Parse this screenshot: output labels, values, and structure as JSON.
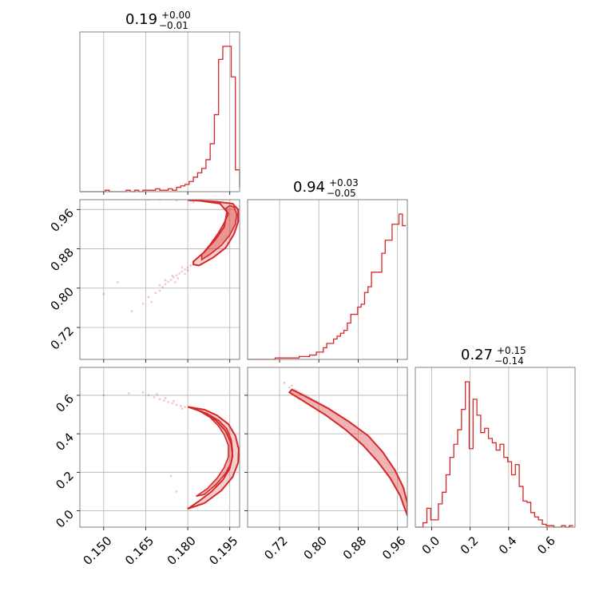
{
  "colors": {
    "series": "#d62728",
    "grid": "#b0b0b0",
    "frame": "#808080"
  },
  "titles": {
    "p1": {
      "median": "0.19",
      "plus": "+0.00",
      "minus": "−0.01"
    },
    "p2": {
      "median": "0.94",
      "plus": "+0.03",
      "minus": "−0.05"
    },
    "p3": {
      "median": "0.27",
      "plus": "+0.15",
      "minus": "−0.14"
    }
  },
  "chart_data": {
    "type": "corner",
    "grid": true,
    "parameters": [
      {
        "median": 0.19,
        "err_plus": 0.0,
        "err_minus": 0.01,
        "range": [
          0.1415,
          0.1985
        ],
        "ticks": [
          "0.150",
          "0.165",
          "0.180",
          "0.195"
        ],
        "tick_values": [
          0.15,
          0.165,
          0.18,
          0.195
        ]
      },
      {
        "median": 0.94,
        "err_plus": 0.03,
        "err_minus": 0.05,
        "range": [
          0.655,
          0.98
        ],
        "ticks": [
          "0.72",
          "0.80",
          "0.88",
          "0.96"
        ],
        "tick_values": [
          0.72,
          0.8,
          0.88,
          0.96
        ]
      },
      {
        "median": 0.27,
        "err_plus": 0.15,
        "err_minus": 0.14,
        "range": [
          -0.085,
          0.745
        ],
        "ticks": [
          "0.0",
          "0.2",
          "0.4",
          "0.6"
        ],
        "tick_values": [
          0.0,
          0.2,
          0.4,
          0.6
        ]
      }
    ],
    "histograms": [
      {
        "param": 0,
        "edges": [
          0.1415,
          0.143,
          0.1445,
          0.146,
          0.1475,
          0.149,
          0.1505,
          0.152,
          0.1535,
          0.155,
          0.1565,
          0.158,
          0.1595,
          0.161,
          0.1625,
          0.164,
          0.1655,
          0.167,
          0.1685,
          0.17,
          0.1715,
          0.173,
          0.1745,
          0.176,
          0.1775,
          0.179,
          0.1805,
          0.182,
          0.1835,
          0.185,
          0.1865,
          0.188,
          0.1895,
          0.191,
          0.1925,
          0.194,
          0.1955,
          0.197,
          0.1985
        ],
        "counts": [
          0,
          0,
          0,
          0,
          0,
          0,
          1,
          0,
          0,
          0,
          0,
          1,
          0,
          1,
          0,
          1,
          1,
          1,
          2,
          1,
          1,
          2,
          1,
          3,
          4,
          5,
          7,
          10,
          13,
          16,
          22,
          33,
          53,
          91,
          100,
          100,
          79,
          15,
          3
        ]
      },
      {
        "param": 1,
        "edges": [
          0.655,
          0.662,
          0.669,
          0.676,
          0.683,
          0.69,
          0.697,
          0.704,
          0.711,
          0.718,
          0.725,
          0.732,
          0.739,
          0.746,
          0.753,
          0.76,
          0.767,
          0.774,
          0.781,
          0.788,
          0.795,
          0.802,
          0.809,
          0.816,
          0.823,
          0.83,
          0.837,
          0.844,
          0.851,
          0.858,
          0.865,
          0.872,
          0.879,
          0.886,
          0.893,
          0.9,
          0.907,
          0.914,
          0.921,
          0.928,
          0.935,
          0.942,
          0.949,
          0.956,
          0.963,
          0.97,
          0.977
        ],
        "counts": [
          0,
          0,
          0,
          0,
          0,
          0,
          0,
          0,
          1,
          1,
          1,
          1,
          1,
          1,
          1,
          2,
          2,
          2,
          3,
          3,
          5,
          5,
          8,
          11,
          11,
          14,
          16,
          18,
          20,
          25,
          31,
          31,
          36,
          38,
          46,
          50,
          60,
          60,
          60,
          73,
          82,
          82,
          93,
          93,
          100,
          92
        ]
      },
      {
        "param": 2,
        "edges": [
          -0.085,
          -0.065,
          -0.045,
          -0.025,
          -0.005,
          0.015,
          0.035,
          0.055,
          0.075,
          0.095,
          0.115,
          0.135,
          0.155,
          0.175,
          0.195,
          0.215,
          0.235,
          0.255,
          0.275,
          0.295,
          0.315,
          0.335,
          0.355,
          0.375,
          0.395,
          0.415,
          0.435,
          0.455,
          0.475,
          0.495,
          0.515,
          0.535,
          0.555,
          0.575,
          0.595,
          0.615,
          0.635,
          0.655,
          0.675,
          0.695,
          0.715,
          0.735
        ],
        "counts": [
          0,
          0,
          3,
          13,
          5,
          5,
          16,
          24,
          36,
          48,
          57,
          67,
          81,
          100,
          54,
          88,
          77,
          65,
          68,
          61,
          58,
          53,
          57,
          48,
          45,
          36,
          43,
          28,
          18,
          17,
          10,
          7,
          5,
          2,
          1,
          1,
          0,
          0,
          1,
          0,
          1
        ]
      }
    ],
    "pairs": [
      {
        "x": 0,
        "y": 1,
        "contour_inner": [
          [
            0.185,
            0.868
          ],
          [
            0.188,
            0.889
          ],
          [
            0.191,
            0.913
          ],
          [
            0.193,
            0.933
          ],
          [
            0.1945,
            0.951
          ],
          [
            0.1935,
            0.962
          ],
          [
            0.195,
            0.968
          ],
          [
            0.1965,
            0.965
          ],
          [
            0.1975,
            0.95
          ],
          [
            0.197,
            0.93
          ],
          [
            0.195,
            0.908
          ],
          [
            0.192,
            0.887
          ],
          [
            0.188,
            0.869
          ],
          [
            0.185,
            0.858
          ]
        ],
        "contour_outer": [
          [
            0.182,
            0.854
          ],
          [
            0.186,
            0.874
          ],
          [
            0.19,
            0.9
          ],
          [
            0.193,
            0.925
          ],
          [
            0.194,
            0.955
          ],
          [
            0.1915,
            0.972
          ],
          [
            0.184,
            0.978
          ],
          [
            0.18,
            0.979
          ],
          [
            0.19,
            0.976
          ],
          [
            0.196,
            0.972
          ],
          [
            0.198,
            0.96
          ],
          [
            0.198,
            0.935
          ],
          [
            0.1965,
            0.91
          ],
          [
            0.1935,
            0.882
          ],
          [
            0.189,
            0.862
          ],
          [
            0.184,
            0.846
          ],
          [
            0.182,
            0.848
          ]
        ],
        "scatter": [
          [
            0.155,
            0.812
          ],
          [
            0.16,
            0.753
          ],
          [
            0.164,
            0.768
          ],
          [
            0.166,
            0.782
          ],
          [
            0.167,
            0.772
          ],
          [
            0.1685,
            0.79
          ],
          [
            0.17,
            0.795
          ],
          [
            0.171,
            0.802
          ],
          [
            0.172,
            0.808
          ],
          [
            0.173,
            0.813
          ],
          [
            0.174,
            0.817
          ],
          [
            0.175,
            0.822
          ],
          [
            0.176,
            0.826
          ],
          [
            0.177,
            0.83
          ],
          [
            0.178,
            0.834
          ],
          [
            0.179,
            0.838
          ],
          [
            0.18,
            0.842
          ],
          [
            0.181,
            0.846
          ],
          [
            0.172,
            0.816
          ],
          [
            0.1745,
            0.825
          ],
          [
            0.1765,
            0.82
          ],
          [
            0.179,
            0.829
          ],
          [
            0.178,
            0.842
          ],
          [
            0.1755,
            0.812
          ],
          [
            0.17,
            0.806
          ],
          [
            0.18,
            0.836
          ],
          [
            0.15,
            0.788
          ],
          [
            0.181,
            0.978
          ],
          [
            0.176,
            0.979
          ],
          [
            0.17,
            0.98
          ],
          [
            0.166,
            0.98
          ],
          [
            0.182,
            0.975
          ]
        ]
      },
      {
        "x": 0,
        "y": 2,
        "contour_inner": [
          [
            0.184,
            0.52
          ],
          [
            0.188,
            0.485
          ],
          [
            0.191,
            0.44
          ],
          [
            0.193,
            0.395
          ],
          [
            0.1945,
            0.34
          ],
          [
            0.1945,
            0.28
          ],
          [
            0.193,
            0.225
          ],
          [
            0.1905,
            0.17
          ],
          [
            0.187,
            0.115
          ],
          [
            0.183,
            0.075
          ],
          [
            0.186,
            0.085
          ],
          [
            0.19,
            0.135
          ],
          [
            0.1935,
            0.195
          ],
          [
            0.1955,
            0.25
          ],
          [
            0.196,
            0.31
          ],
          [
            0.1955,
            0.37
          ],
          [
            0.194,
            0.425
          ],
          [
            0.191,
            0.47
          ],
          [
            0.187,
            0.505
          ]
        ],
        "contour_outer": [
          [
            0.18,
            0.54
          ],
          [
            0.185,
            0.515
          ],
          [
            0.19,
            0.47
          ],
          [
            0.1935,
            0.415
          ],
          [
            0.1955,
            0.35
          ],
          [
            0.196,
            0.285
          ],
          [
            0.195,
            0.22
          ],
          [
            0.1925,
            0.16
          ],
          [
            0.1885,
            0.1
          ],
          [
            0.184,
            0.05
          ],
          [
            0.18,
            0.01
          ],
          [
            0.186,
            0.04
          ],
          [
            0.192,
            0.105
          ],
          [
            0.196,
            0.175
          ],
          [
            0.198,
            0.25
          ],
          [
            0.1982,
            0.32
          ],
          [
            0.197,
            0.39
          ],
          [
            0.1945,
            0.45
          ],
          [
            0.1905,
            0.495
          ],
          [
            0.186,
            0.525
          ]
        ],
        "scatter": [
          [
            0.159,
            0.61
          ],
          [
            0.164,
            0.615
          ],
          [
            0.166,
            0.6
          ],
          [
            0.168,
            0.59
          ],
          [
            0.17,
            0.58
          ],
          [
            0.1715,
            0.572
          ],
          [
            0.173,
            0.565
          ],
          [
            0.1745,
            0.558
          ],
          [
            0.176,
            0.55
          ],
          [
            0.1775,
            0.545
          ],
          [
            0.179,
            0.54
          ],
          [
            0.172,
            0.585
          ],
          [
            0.169,
            0.605
          ],
          [
            0.175,
            0.57
          ],
          [
            0.178,
            0.53
          ],
          [
            0.18,
            0.015
          ],
          [
            0.176,
            0.1
          ],
          [
            0.174,
            0.18
          ],
          [
            0.15,
            0.6
          ]
        ]
      },
      {
        "x": 1,
        "y": 2,
        "band_upper": [
          [
            0.745,
            0.63
          ],
          [
            0.78,
            0.585
          ],
          [
            0.82,
            0.53
          ],
          [
            0.86,
            0.465
          ],
          [
            0.9,
            0.39
          ],
          [
            0.93,
            0.305
          ],
          [
            0.955,
            0.21
          ],
          [
            0.972,
            0.12
          ],
          [
            0.98,
            0.04
          ]
        ],
        "band_lower": [
          [
            0.98,
            -0.025
          ],
          [
            0.965,
            0.08
          ],
          [
            0.945,
            0.17
          ],
          [
            0.92,
            0.255
          ],
          [
            0.89,
            0.34
          ],
          [
            0.855,
            0.42
          ],
          [
            0.815,
            0.495
          ],
          [
            0.775,
            0.56
          ],
          [
            0.74,
            0.615
          ]
        ],
        "scatter": [
          [
            0.73,
            0.665
          ],
          [
            0.74,
            0.64
          ],
          [
            0.745,
            0.65
          ],
          [
            0.75,
            0.63
          ],
          [
            0.755,
            0.625
          ],
          [
            0.76,
            0.615
          ],
          [
            0.765,
            0.61
          ],
          [
            0.77,
            0.603
          ],
          [
            0.775,
            0.597
          ],
          [
            0.78,
            0.59
          ],
          [
            0.785,
            0.582
          ],
          [
            0.79,
            0.575
          ],
          [
            0.795,
            0.57
          ],
          [
            0.8,
            0.562
          ],
          [
            0.805,
            0.555
          ],
          [
            0.81,
            0.548
          ],
          [
            0.815,
            0.54
          ],
          [
            0.82,
            0.533
          ]
        ]
      }
    ]
  }
}
